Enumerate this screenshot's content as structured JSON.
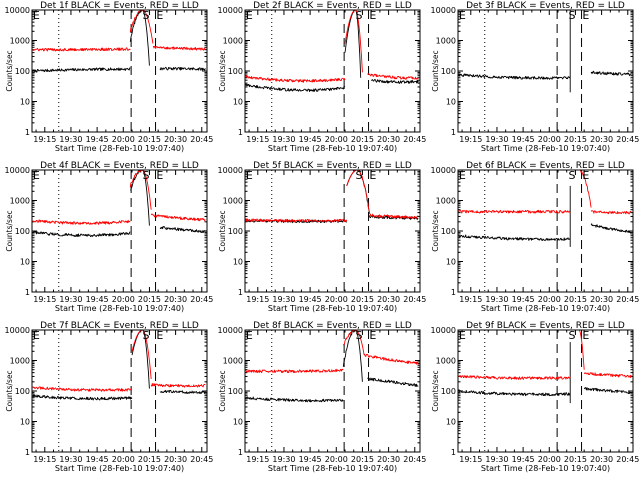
{
  "chart_data": [
    {
      "type": "line",
      "title": "Det 1f BLACK = Events, RED = LLD",
      "xlabel": "Start Time (28-Feb-10 19:07:40)",
      "ylabel": "Counts/sec",
      "y_scale": "log",
      "ylim": [
        1,
        10000
      ],
      "yticks": [
        "1",
        "10",
        "100",
        "1000",
        "10000"
      ],
      "xticks": [
        "19:15",
        "19:30",
        "19:45",
        "20:00",
        "20:15",
        "20:30",
        "20:45"
      ],
      "markers": [
        "E",
        "S",
        "E"
      ],
      "series": [
        {
          "color": "#000000",
          "segments": [
            {
              "from": "19:08",
              "to": "20:04",
              "start": 100,
              "peak": 115,
              "end": 115
            },
            {
              "from": "20:04",
              "to": "20:11",
              "start": 1000,
              "peak": 10000,
              "end": 10000
            },
            {
              "from": "20:11",
              "to": "20:15",
              "start": 10000,
              "peak": 10000,
              "end": 150
            },
            {
              "from": "20:21",
              "to": "20:47",
              "start": 120,
              "peak": 120,
              "end": 115
            }
          ]
        },
        {
          "color": "#ff0000",
          "segments": [
            {
              "from": "19:08",
              "to": "20:04",
              "start": 500,
              "peak": 500,
              "end": 520
            },
            {
              "from": "20:04",
              "to": "20:11",
              "start": 2000,
              "peak": 10000,
              "end": 10000
            },
            {
              "from": "20:11",
              "to": "20:17",
              "start": 10000,
              "peak": 10000,
              "end": 800
            },
            {
              "from": "20:17",
              "to": "20:47",
              "start": 600,
              "peak": 550,
              "end": 520
            }
          ]
        }
      ]
    },
    {
      "type": "line",
      "title": "Det 2f BLACK = Events, RED = LLD",
      "xlabel": "Start Time (28-Feb-10 19:07:40)",
      "ylabel": "Counts/sec",
      "y_scale": "log",
      "ylim": [
        1,
        10000
      ],
      "yticks": [
        "1",
        "10",
        "100",
        "1000",
        "10000"
      ],
      "xticks": [
        "19:15",
        "19:30",
        "19:45",
        "20:00",
        "20:15",
        "20:30",
        "20:45"
      ],
      "markers": [
        "E",
        "S",
        "E"
      ],
      "series": [
        {
          "color": "#000000",
          "segments": [
            {
              "from": "19:08",
              "to": "20:05",
              "start": 35,
              "peak": 18,
              "end": 28
            },
            {
              "from": "20:05",
              "to": "20:11",
              "start": 400,
              "peak": 10000,
              "end": 10000
            },
            {
              "from": "20:11",
              "to": "20:14",
              "start": 10000,
              "peak": 10000,
              "end": 60
            },
            {
              "from": "20:20",
              "to": "20:47",
              "start": 50,
              "peak": 40,
              "end": 45
            }
          ]
        },
        {
          "color": "#ff0000",
          "segments": [
            {
              "from": "19:08",
              "to": "20:05",
              "start": 65,
              "peak": 38,
              "end": 55
            },
            {
              "from": "20:05",
              "to": "20:11",
              "start": 800,
              "peak": 10000,
              "end": 10000
            },
            {
              "from": "20:11",
              "to": "20:15",
              "start": 10000,
              "peak": 10000,
              "end": 90
            },
            {
              "from": "20:18",
              "to": "20:47",
              "start": 80,
              "peak": 55,
              "end": 60
            }
          ]
        }
      ]
    },
    {
      "type": "line",
      "title": "Det 3f BLACK = Events, RED = LLD",
      "xlabel": "Start Time (28-Feb-10 19:07:40)",
      "ylabel": "Counts/sec",
      "y_scale": "log",
      "ylim": [
        1,
        10000
      ],
      "yticks": [
        "1",
        "10",
        "100",
        "1000",
        "10000"
      ],
      "xticks": [
        "19:15",
        "19:30",
        "19:45",
        "20:00",
        "20:15",
        "20:30",
        "20:45"
      ],
      "markers": [
        "E",
        "S",
        "E"
      ],
      "series": [
        {
          "color": "#000000",
          "segments": [
            {
              "from": "19:08",
              "to": "20:12",
              "start": 75,
              "peak": 55,
              "end": 60
            },
            {
              "from": "20:12",
              "to": "20:12",
              "start": 20,
              "peak": 10000,
              "end": 10000
            },
            {
              "from": "20:24",
              "to": "20:47",
              "start": 90,
              "peak": 80,
              "end": 78
            }
          ]
        }
      ]
    },
    {
      "type": "line",
      "title": "Det 4f BLACK = Events, RED = LLD",
      "xlabel": "Start Time (28-Feb-10 19:07:40)",
      "ylabel": "Counts/sec",
      "y_scale": "log",
      "ylim": [
        1,
        10000
      ],
      "yticks": [
        "1",
        "10",
        "100",
        "1000",
        "10000"
      ],
      "xticks": [
        "19:15",
        "19:30",
        "19:45",
        "20:00",
        "20:15",
        "20:30",
        "20:45"
      ],
      "markers": [
        "E",
        "S",
        "E"
      ],
      "series": [
        {
          "color": "#000000",
          "segments": [
            {
              "from": "19:08",
              "to": "20:04",
              "start": 90,
              "peak": 60,
              "end": 85
            },
            {
              "from": "20:04",
              "to": "20:11",
              "start": 2000,
              "peak": 10000,
              "end": 10000
            },
            {
              "from": "20:11",
              "to": "20:15",
              "start": 10000,
              "peak": 10000,
              "end": 150
            },
            {
              "from": "20:21",
              "to": "20:47",
              "start": 130,
              "peak": 110,
              "end": 95
            }
          ]
        },
        {
          "color": "#ff0000",
          "segments": [
            {
              "from": "19:08",
              "to": "20:04",
              "start": 220,
              "peak": 150,
              "end": 210
            },
            {
              "from": "20:04",
              "to": "20:11",
              "start": 3000,
              "peak": 10000,
              "end": 10000
            },
            {
              "from": "20:11",
              "to": "20:16",
              "start": 10000,
              "peak": 10000,
              "end": 500
            },
            {
              "from": "20:16",
              "to": "20:47",
              "start": 330,
              "peak": 260,
              "end": 230
            }
          ]
        }
      ]
    },
    {
      "type": "line",
      "title": "Det 5f BLACK = Events, RED = LLD",
      "xlabel": "Start Time (28-Feb-10 19:07:40)",
      "ylabel": "Counts/sec",
      "y_scale": "log",
      "ylim": [
        1,
        10000
      ],
      "yticks": [
        "1",
        "10",
        "100",
        "1000",
        "10000"
      ],
      "xticks": [
        "19:15",
        "19:30",
        "19:45",
        "20:00",
        "20:15",
        "20:30",
        "20:45"
      ],
      "markers": [
        "E",
        "S",
        "E"
      ],
      "series": [
        {
          "color": "#000000",
          "segments": [
            {
              "from": "19:08",
              "to": "20:06",
              "start": 220,
              "peak": 200,
              "end": 210
            },
            {
              "from": "20:06",
              "to": "20:12",
              "start": 3000,
              "peak": 10000,
              "end": 10000
            },
            {
              "from": "20:12",
              "to": "20:19",
              "start": 10000,
              "peak": 10000,
              "end": 350
            },
            {
              "from": "20:19",
              "to": "20:47",
              "start": 300,
              "peak": 270,
              "end": 260
            }
          ]
        },
        {
          "color": "#ff0000",
          "segments": [
            {
              "from": "19:08",
              "to": "20:06",
              "start": 230,
              "peak": 210,
              "end": 220
            },
            {
              "from": "20:06",
              "to": "20:12",
              "start": 3000,
              "peak": 10000,
              "end": 10000
            },
            {
              "from": "20:12",
              "to": "20:19",
              "start": 10000,
              "peak": 10000,
              "end": 400
            },
            {
              "from": "20:19",
              "to": "20:47",
              "start": 330,
              "peak": 290,
              "end": 280
            }
          ]
        }
      ]
    },
    {
      "type": "line",
      "title": "Det 6f BLACK = Events, RED = LLD",
      "xlabel": "Start Time (28-Feb-10 19:07:40)",
      "ylabel": "Counts/sec",
      "y_scale": "log",
      "ylim": [
        1,
        10000
      ],
      "yticks": [
        "1",
        "10",
        "100",
        "1000",
        "10000"
      ],
      "xticks": [
        "19:15",
        "19:30",
        "19:45",
        "20:00",
        "20:15",
        "20:30",
        "20:45"
      ],
      "markers": [
        "E",
        "S",
        "E"
      ],
      "series": [
        {
          "color": "#000000",
          "segments": [
            {
              "from": "19:08",
              "to": "20:12",
              "start": 70,
              "peak": 50,
              "end": 55
            },
            {
              "from": "20:12",
              "to": "20:12",
              "start": 30,
              "peak": 3000,
              "end": 3000
            },
            {
              "from": "20:24",
              "to": "20:47",
              "start": 160,
              "peak": 110,
              "end": 95
            }
          ]
        },
        {
          "color": "#ff0000",
          "segments": [
            {
              "from": "19:08",
              "to": "20:12",
              "start": 430,
              "peak": 430,
              "end": 430
            },
            {
              "from": "20:12",
              "to": "20:17",
              "start": 10000,
              "peak": 10000,
              "end": 10000
            },
            {
              "from": "20:17",
              "to": "20:24",
              "start": 10000,
              "peak": 10000,
              "end": 600
            },
            {
              "from": "20:24",
              "to": "20:47",
              "start": 420,
              "peak": 400,
              "end": 400
            }
          ]
        }
      ]
    },
    {
      "type": "line",
      "title": "Det 7f BLACK = Events, RED = LLD",
      "xlabel": "Start Time (28-Feb-10 19:07:40)",
      "ylabel": "Counts/sec",
      "y_scale": "log",
      "ylim": [
        1,
        10000
      ],
      "yticks": [
        "1",
        "10",
        "100",
        "1000",
        "10000"
      ],
      "xticks": [
        "19:15",
        "19:30",
        "19:45",
        "20:00",
        "20:15",
        "20:30",
        "20:45"
      ],
      "markers": [
        "E",
        "S",
        "E"
      ],
      "series": [
        {
          "color": "#000000",
          "segments": [
            {
              "from": "19:08",
              "to": "20:05",
              "start": 70,
              "peak": 50,
              "end": 60
            },
            {
              "from": "20:05",
              "to": "20:11",
              "start": 1500,
              "peak": 10000,
              "end": 10000
            },
            {
              "from": "20:11",
              "to": "20:15",
              "start": 10000,
              "peak": 10000,
              "end": 120
            },
            {
              "from": "20:21",
              "to": "20:47",
              "start": 100,
              "peak": 90,
              "end": 90
            }
          ]
        },
        {
          "color": "#ff0000",
          "segments": [
            {
              "from": "19:08",
              "to": "20:05",
              "start": 130,
              "peak": 100,
              "end": 110
            },
            {
              "from": "20:05",
              "to": "20:11",
              "start": 2000,
              "peak": 10000,
              "end": 10000
            },
            {
              "from": "20:11",
              "to": "20:16",
              "start": 10000,
              "peak": 10000,
              "end": 250
            },
            {
              "from": "20:16",
              "to": "20:47",
              "start": 160,
              "peak": 140,
              "end": 150
            }
          ]
        }
      ]
    },
    {
      "type": "line",
      "title": "Det 8f BLACK = Events, RED = LLD",
      "xlabel": "Start Time (28-Feb-10 19:07:40)",
      "ylabel": "Counts/sec",
      "y_scale": "log",
      "ylim": [
        1,
        10000
      ],
      "yticks": [
        "1",
        "10",
        "100",
        "1000",
        "10000"
      ],
      "xticks": [
        "19:15",
        "19:30",
        "19:45",
        "20:00",
        "20:15",
        "20:30",
        "20:45"
      ],
      "markers": [
        "E",
        "S",
        "E"
      ],
      "series": [
        {
          "color": "#000000",
          "segments": [
            {
              "from": "19:08",
              "to": "20:04",
              "start": 60,
              "peak": 45,
              "end": 50
            },
            {
              "from": "20:04",
              "to": "20:11",
              "start": 600,
              "peak": 10000,
              "end": 10000
            },
            {
              "from": "20:11",
              "to": "20:15",
              "start": 10000,
              "peak": 10000,
              "end": 200
            },
            {
              "from": "20:18",
              "to": "20:47",
              "start": 250,
              "peak": 200,
              "end": 150
            }
          ]
        },
        {
          "color": "#ff0000",
          "segments": [
            {
              "from": "19:08",
              "to": "20:04",
              "start": 450,
              "peak": 420,
              "end": 480
            },
            {
              "from": "20:04",
              "to": "20:11",
              "start": 3000,
              "peak": 10000,
              "end": 10000
            },
            {
              "from": "20:11",
              "to": "20:16",
              "start": 10000,
              "peak": 10000,
              "end": 1500
            },
            {
              "from": "20:16",
              "to": "20:47",
              "start": 1500,
              "peak": 1000,
              "end": 800
            }
          ]
        }
      ]
    },
    {
      "type": "line",
      "title": "Det 9f BLACK = Events, RED = LLD",
      "xlabel": "Start Time (28-Feb-10 19:07:40)",
      "ylabel": "Counts/sec",
      "y_scale": "log",
      "ylim": [
        1,
        10000
      ],
      "yticks": [
        "1",
        "10",
        "100",
        "1000",
        "10000"
      ],
      "xticks": [
        "19:15",
        "19:30",
        "19:45",
        "20:00",
        "20:15",
        "20:30",
        "20:45"
      ],
      "markers": [
        "E",
        "S",
        "E"
      ],
      "series": [
        {
          "color": "#000000",
          "segments": [
            {
              "from": "19:08",
              "to": "20:12",
              "start": 100,
              "peak": 70,
              "end": 80
            },
            {
              "from": "20:12",
              "to": "20:12",
              "start": 40,
              "peak": 4000,
              "end": 4000
            },
            {
              "from": "20:20",
              "to": "20:47",
              "start": 120,
              "peak": 100,
              "end": 90
            }
          ]
        },
        {
          "color": "#ff0000",
          "segments": [
            {
              "from": "19:08",
              "to": "20:12",
              "start": 300,
              "peak": 250,
              "end": 270
            },
            {
              "from": "20:12",
              "to": "20:17",
              "start": 10000,
              "peak": 10000,
              "end": 10000
            },
            {
              "from": "20:17",
              "to": "20:20",
              "start": 10000,
              "peak": 10000,
              "end": 500
            },
            {
              "from": "20:20",
              "to": "20:47",
              "start": 380,
              "peak": 330,
              "end": 300
            }
          ]
        }
      ]
    }
  ]
}
